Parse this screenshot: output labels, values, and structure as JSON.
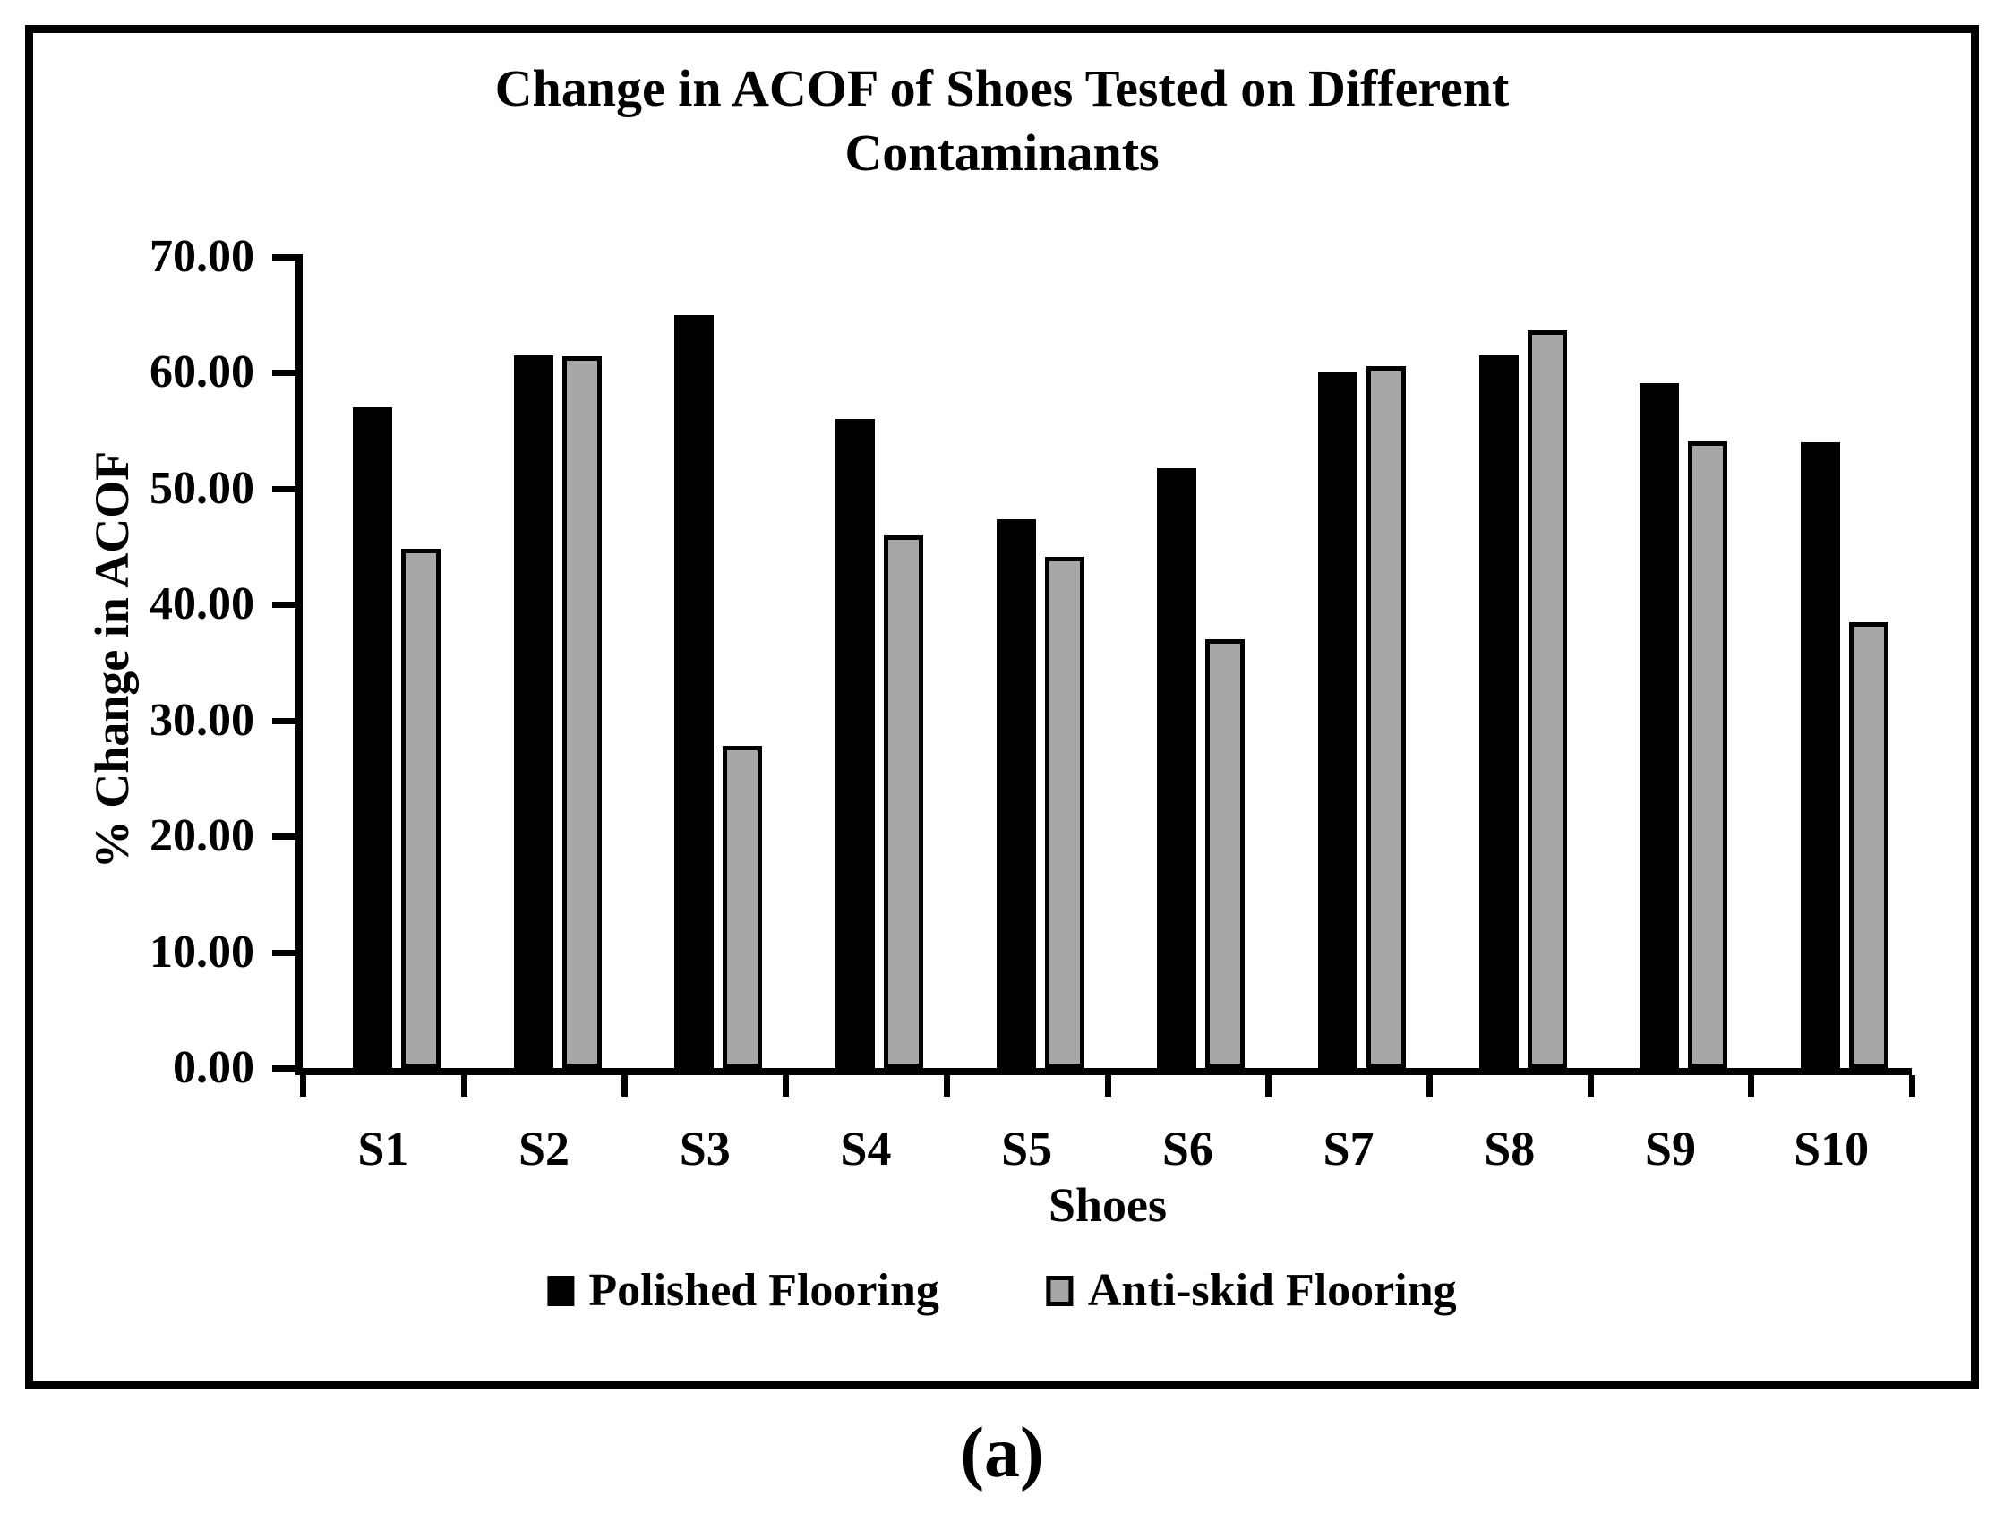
{
  "figure": {
    "caption": "(a)"
  },
  "chart_data": {
    "type": "bar",
    "title_line1": "Change in ACOF of Shoes Tested on Different",
    "title_line2": "Contaminants",
    "xlabel": "Shoes",
    "ylabel": "% Change in ACOF",
    "categories": [
      "S1",
      "S2",
      "S3",
      "S4",
      "S5",
      "S6",
      "S7",
      "S8",
      "S9",
      "S10"
    ],
    "series": [
      {
        "name": "Polished Flooring",
        "color": "#000000",
        "values": [
          57.0,
          61.5,
          65.0,
          56.0,
          47.4,
          51.8,
          60.0,
          61.5,
          59.1,
          54.0
        ]
      },
      {
        "name": "Anti-skid Flooring",
        "color": "#a7a7a7",
        "values": [
          44.8,
          61.4,
          27.8,
          46.0,
          44.1,
          37.0,
          60.6,
          63.7,
          54.1,
          38.5
        ]
      }
    ],
    "ylim": [
      0,
      70
    ],
    "ytick_values": [
      70,
      60,
      50,
      40,
      30,
      20,
      10,
      0
    ],
    "ytick_labels": [
      "70.00",
      "60.00",
      "50.00",
      "40.00",
      "30.00",
      "20.00",
      "10.00",
      "0.00"
    ],
    "grid": false,
    "legend_position": "bottom"
  }
}
